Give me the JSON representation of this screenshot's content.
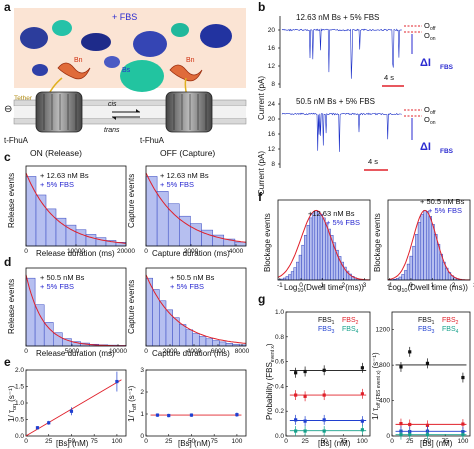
{
  "panels": {
    "a": {
      "letter": "a",
      "fbs_label": "+ FBS",
      "bn1": "Bn",
      "bn2": "Bn",
      "bs_label": "Bs",
      "tether_label": "Tether",
      "cis_label": "cis",
      "trans_label": "trans",
      "left_pore": "t-FhuA",
      "right_pore": "t-FhuA",
      "on_label": "ON (Release)",
      "off_label": "OFF (Capture)",
      "voltage_symbol": "⊖"
    },
    "b": {
      "letter": "b",
      "top_label": "12.63 nM Bs + 5% FBS",
      "bottom_label": "50.5 nM Bs + 5% FBS",
      "ylabel": "Current (pA)",
      "yticks_top": [
        "8",
        "12",
        "16",
        "20"
      ],
      "yticks_bottom": [
        "8",
        "12",
        "16",
        "20",
        "24"
      ],
      "scale_label": "4 s",
      "o_off": "O",
      "o_off_sub": "off",
      "o_on": "O",
      "o_on_sub": "on",
      "delta": "ΔI",
      "delta_sub": "FBS"
    },
    "c": {
      "letter": "c",
      "legend1": "+ 12.63 nM Bs",
      "legend2": "+ 5% FBS",
      "left_ylabel": "Release events",
      "left_xlabel": "Release duration (ms)",
      "left_xticks": [
        "0",
        "10000",
        "20000"
      ],
      "right_ylabel": "Capture events",
      "right_xlabel": "Capture duration (ms)",
      "right_xticks": [
        "0",
        "2000",
        "4000"
      ]
    },
    "d": {
      "letter": "d",
      "legend1": "+ 50.5 nM Bs",
      "legend2": "+ 5% FBS",
      "left_ylabel": "Release events",
      "left_xlabel": "Release duration (ms)",
      "left_xticks": [
        "0",
        "5000",
        "10000"
      ],
      "right_ylabel": "Capture events",
      "right_xlabel": "Capture duration (ms)",
      "right_xticks": [
        "0",
        "2000",
        "4000",
        "6000",
        "8000"
      ]
    },
    "e": {
      "letter": "e",
      "left_ylabel": "1/ τ",
      "left_ylabel_sub": "on",
      "left_ylabel_unit": "(s⁻¹)",
      "right_ylabel": "1/ τ",
      "right_ylabel_sub": "off",
      "right_ylabel_unit": "(s⁻¹)",
      "xlabel": "[Bs] (nM)",
      "xticks": [
        "0",
        "25",
        "50",
        "75",
        "100"
      ],
      "left_yticks": [
        "0.0",
        "0.5",
        "1.0",
        "1.5",
        "2.0"
      ],
      "right_yticks": [
        "0",
        "1",
        "2",
        "3"
      ]
    },
    "f": {
      "letter": "f",
      "legend_left1": "+12.63 nM Bs",
      "legend_left2": "+ 5% FBS",
      "legend_right1": "+ 50.5 nM Bs",
      "legend_right2": "+ 5% FBS",
      "ylabel": "Blockage events",
      "xlabel": "Log",
      "xlabel_sub": "10",
      "xlabel_rest": "(Dwell time (ms))",
      "left_xticks": [
        "-1",
        "0",
        "1",
        "2",
        "3"
      ],
      "right_xticks": [
        "-1",
        "0",
        "1",
        "2",
        "3"
      ]
    },
    "g": {
      "letter": "g",
      "left_ylabel": "Probability (FBS",
      "left_ylabel_sub": "event x",
      "left_ylabel_end": ")",
      "right_ylabel": "1/ τ",
      "right_ylabel_sub": "off (FBS event x)",
      "right_ylabel_unit": "(s⁻¹)",
      "xlabel": "[Bs] (nM)",
      "xticks": [
        "0",
        "25",
        "50",
        "75",
        "100"
      ],
      "left_yticks": [
        "0.0",
        "0.2",
        "0.4",
        "0.6",
        "0.8",
        "1.0"
      ],
      "right_yticks": [
        "0",
        "400",
        "800",
        "1200"
      ],
      "legend": [
        "FBS",
        "FBS",
        "FBS",
        "FBS"
      ],
      "legend_subs": [
        "1",
        "2",
        "3",
        "4"
      ],
      "legend_colors": [
        "#111111",
        "#e0202a",
        "#2040d0",
        "#16a08a"
      ]
    }
  },
  "chart_data": [
    {
      "type": "bar",
      "panel": "c-left",
      "categories": [
        "1000",
        "3000",
        "5000",
        "7000",
        "9000",
        "11000",
        "13000",
        "15000",
        "17000",
        "19000"
      ],
      "values": [
        150,
        110,
        80,
        60,
        45,
        35,
        25,
        18,
        12,
        8
      ],
      "title": "",
      "xlabel": "Release duration (ms)",
      "ylabel": "Release events"
    },
    {
      "type": "bar",
      "panel": "c-right",
      "categories": [
        "250",
        "750",
        "1250",
        "1750",
        "2250",
        "2750",
        "3250",
        "3750",
        "4250"
      ],
      "values": [
        140,
        110,
        85,
        60,
        45,
        32,
        22,
        14,
        8
      ],
      "title": "",
      "xlabel": "Capture duration (ms)",
      "ylabel": "Capture events"
    },
    {
      "type": "bar",
      "panel": "d-left",
      "categories": [
        "250",
        "750",
        "1250",
        "1750",
        "2250",
        "2750",
        "3250",
        "3750",
        "4250",
        "4750",
        "5250"
      ],
      "values": [
        230,
        140,
        80,
        45,
        25,
        15,
        10,
        6,
        4,
        3,
        2
      ],
      "title": "",
      "xlabel": "Release duration (ms)",
      "ylabel": "Release events"
    },
    {
      "type": "bar",
      "panel": "d-right",
      "categories": [
        "250",
        "750",
        "1250",
        "1750",
        "2250",
        "2750",
        "3250",
        "3750",
        "4250",
        "4750",
        "5250",
        "5750",
        "6250",
        "6750",
        "7250"
      ],
      "values": [
        300,
        250,
        200,
        160,
        125,
        95,
        72,
        55,
        42,
        32,
        24,
        18,
        12,
        8,
        5
      ],
      "title": "",
      "xlabel": "Capture duration (ms)",
      "ylabel": "Capture events"
    },
    {
      "type": "scatter",
      "panel": "e-left",
      "x": [
        12.63,
        25,
        50,
        100
      ],
      "y": [
        0.25,
        0.4,
        0.75,
        1.65
      ],
      "yerr": [
        0.05,
        0.06,
        0.12,
        0.3
      ],
      "xlim": [
        0,
        110
      ],
      "ylim": [
        0,
        2.0
      ],
      "fit": "linear",
      "xlabel": "[Bs] (nM)",
      "ylabel": "1/τon (s⁻¹)"
    },
    {
      "type": "scatter",
      "panel": "e-right",
      "x": [
        12.63,
        25,
        50,
        100
      ],
      "y": [
        0.95,
        0.93,
        0.95,
        0.97
      ],
      "yerr": [
        0.08,
        0.08,
        0.08,
        0.1
      ],
      "xlim": [
        0,
        110
      ],
      "ylim": [
        0,
        3
      ],
      "fit": "constant",
      "xlabel": "[Bs] (nM)",
      "ylabel": "1/τoff (s⁻¹)"
    },
    {
      "type": "bar",
      "panel": "f-left",
      "x_start": -1.5,
      "bin_width": 0.1,
      "values": [
        2,
        4,
        8,
        14,
        22,
        34,
        50,
        72,
        100,
        140,
        180,
        220,
        250,
        270,
        280,
        275,
        265,
        250,
        230,
        205,
        180,
        150,
        120,
        95,
        72,
        52,
        36,
        24,
        15,
        9,
        5,
        3,
        2,
        1,
        1
      ],
      "xlabel": "Log10(Dwell time (ms))",
      "ylabel": "Blockage events"
    },
    {
      "type": "bar",
      "panel": "f-right",
      "x_start": -1.5,
      "bin_width": 0.1,
      "values": [
        1,
        2,
        4,
        8,
        15,
        28,
        48,
        80,
        120,
        170,
        230,
        290,
        330,
        350,
        345,
        320,
        280,
        230,
        180,
        130,
        90,
        60,
        38,
        22,
        12,
        7,
        4,
        2,
        1,
        1
      ],
      "xlabel": "Log10(Dwell time (ms))",
      "ylabel": "Blockage events"
    },
    {
      "type": "scatter",
      "panel": "g-left",
      "x": [
        12.63,
        25,
        50,
        100
      ],
      "series": [
        {
          "name": "FBS1",
          "values": [
            0.51,
            0.52,
            0.53,
            0.55
          ]
        },
        {
          "name": "FBS2",
          "values": [
            0.33,
            0.32,
            0.33,
            0.34
          ]
        },
        {
          "name": "FBS3",
          "values": [
            0.13,
            0.12,
            0.13,
            0.12
          ]
        },
        {
          "name": "FBS4",
          "values": [
            0.04,
            0.04,
            0.04,
            0.05
          ]
        }
      ],
      "xlim": [
        0,
        110
      ],
      "ylim": [
        0,
        1.0
      ],
      "xlabel": "[Bs] (nM)"
    },
    {
      "type": "scatter",
      "panel": "g-right",
      "x": [
        12.63,
        25,
        50,
        100
      ],
      "series": [
        {
          "name": "FBS1",
          "values": [
            780,
            950,
            820,
            660
          ]
        },
        {
          "name": "FBS2",
          "values": [
            140,
            130,
            120,
            135
          ]
        },
        {
          "name": "FBS3",
          "values": [
            55,
            50,
            55,
            50
          ]
        },
        {
          "name": "FBS4",
          "values": [
            15,
            15,
            15,
            15
          ]
        }
      ],
      "xlim": [
        0,
        110
      ],
      "ylim": [
        0,
        1400
      ],
      "xlabel": "[Bs] (nM)"
    }
  ]
}
